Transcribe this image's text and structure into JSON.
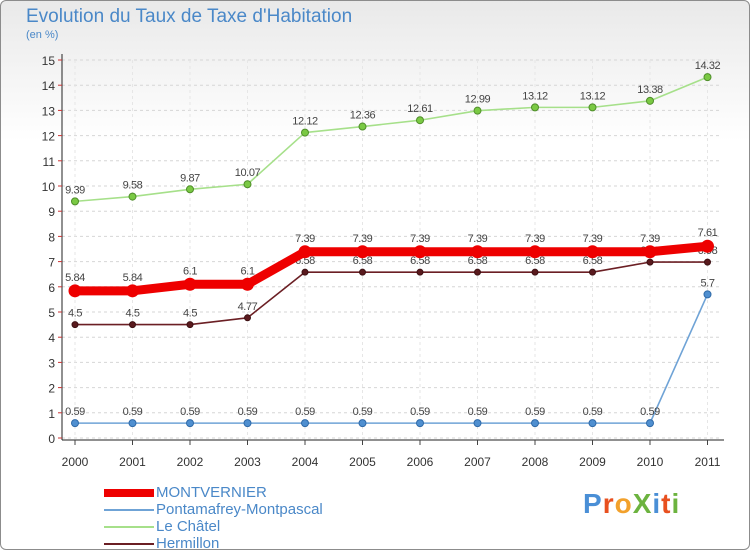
{
  "header": {
    "title": "Evolution du Taux de Taxe d'Habitation",
    "subtitle": "(en %)"
  },
  "logo": {
    "text": "ProXiti",
    "letters": [
      {
        "ch": "P",
        "color": "#4a8fd6"
      },
      {
        "ch": "r",
        "color": "#e8501f"
      },
      {
        "ch": "o",
        "color": "#f2a12c"
      },
      {
        "ch": "X",
        "color": "#6cb33f"
      },
      {
        "ch": "i",
        "color": "#4a8fd6"
      },
      {
        "ch": "t",
        "color": "#e8501f"
      },
      {
        "ch": "i",
        "color": "#6cb33f"
      }
    ]
  },
  "chart_data": {
    "type": "line",
    "title": "Evolution du Taux de Taxe d'Habitation",
    "subtitle": "(en %)",
    "xlabel": "",
    "ylabel": "",
    "x": [
      2000,
      2001,
      2002,
      2003,
      2004,
      2005,
      2006,
      2007,
      2008,
      2009,
      2010,
      2011
    ],
    "ylim": [
      0,
      15
    ],
    "yticks": [
      0,
      1,
      2,
      3,
      4,
      5,
      6,
      7,
      8,
      9,
      10,
      11,
      12,
      13,
      14,
      15
    ],
    "grid": "horizontal dashed",
    "legend_position": "bottom-left",
    "series": [
      {
        "name": "Hermillon",
        "color": "#6b1f24",
        "values": [
          4.5,
          4.5,
          4.5,
          4.77,
          6.58,
          6.58,
          6.58,
          6.58,
          6.58,
          6.58,
          6.98,
          6.98
        ],
        "labels": [
          "4.5",
          "4.5",
          "4.5",
          "4.77",
          "6.58",
          "6.58",
          "6.58",
          "6.58",
          "6.58",
          "6.58",
          "6.98",
          "6.98"
        ]
      },
      {
        "name": "Le Châtel",
        "color": "#a6e08a",
        "values": [
          9.39,
          9.58,
          9.87,
          10.07,
          12.12,
          12.36,
          12.61,
          12.99,
          13.12,
          13.12,
          13.38,
          14.32
        ],
        "labels": [
          "9.39",
          "9.58",
          "9.87",
          "10.07",
          "12.12",
          "12.36",
          "12.61",
          "12.99",
          "13.12",
          "13.12",
          "13.38",
          "14.32"
        ]
      },
      {
        "name": "Pontamafrey-Montpascal",
        "color": "#6fa3d6",
        "values": [
          0.59,
          0.59,
          0.59,
          0.59,
          0.59,
          0.59,
          0.59,
          0.59,
          0.59,
          0.59,
          0.59,
          5.7
        ],
        "labels": [
          "0.59",
          "0.59",
          "0.59",
          "0.59",
          "0.59",
          "0.59",
          "0.59",
          "0.59",
          "0.59",
          "0.59",
          "0.59",
          "5.7"
        ]
      },
      {
        "name": "MONTVERNIER",
        "color": "#ee0000",
        "values": [
          5.84,
          5.84,
          6.1,
          6.1,
          7.39,
          7.39,
          7.39,
          7.39,
          7.39,
          7.39,
          7.39,
          7.61
        ],
        "labels": [
          "5.84",
          "5.84",
          "6.1",
          "6.1",
          "7.39",
          "7.39",
          "7.39",
          "7.39",
          "7.39",
          "7.39",
          "7.39",
          "7.61"
        ]
      }
    ],
    "legend": [
      "MONTVERNIER",
      "Pontamafrey-Montpascal",
      "Le Châtel",
      "Hermillon"
    ]
  }
}
